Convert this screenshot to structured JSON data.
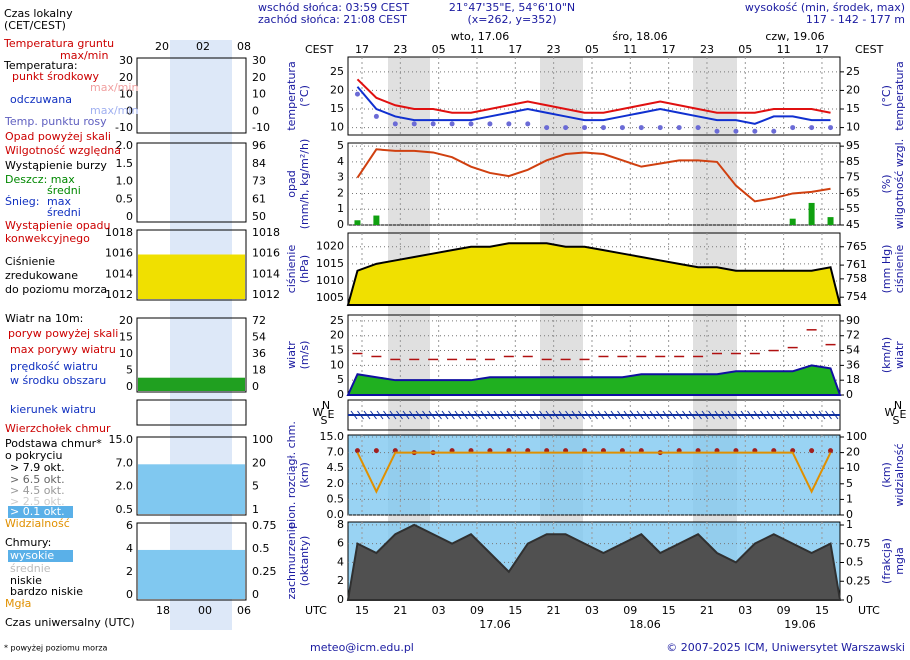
{
  "header": {
    "sunrise": "wschód słońca: 03:59 CEST",
    "sunset": "zachód słońca: 21:08 CEST",
    "coords": "21°47'35\"E, 54°6'10\"N",
    "grid": "(x=262, y=352)",
    "elevation_label": "wysokość (min, środek, max)",
    "elevation": "117 - 142 - 177 m"
  },
  "time_axis": {
    "tz_top": "CEST",
    "tz_top_right": "CEST",
    "top_hours": [
      "17",
      "23",
      "05",
      "11",
      "17",
      "23",
      "05",
      "11",
      "17",
      "23",
      "05",
      "11",
      "17"
    ],
    "dates_top": [
      "wto, 17.06",
      "śro, 18.06",
      "czw, 19.06"
    ],
    "tz_bottom": "UTC",
    "tz_bottom_right": "UTC",
    "bottom_hours": [
      "15",
      "21",
      "03",
      "09",
      "15",
      "21",
      "03",
      "09",
      "15",
      "21",
      "03",
      "09",
      "15"
    ],
    "dates_bottom": [
      "17.06",
      "18.06",
      "19.06"
    ]
  },
  "chart_data": [
    {
      "type": "line",
      "left_label": [
        "temperatura",
        "(°C)"
      ],
      "right_label": [
        "(°C)",
        "temperatura"
      ],
      "background": "#ffffff",
      "ylim": [
        8,
        29
      ],
      "yticks": [
        10,
        15,
        20,
        25
      ],
      "y2lim": [
        8,
        29
      ],
      "y2ticks": [
        10,
        15,
        20,
        25
      ],
      "series": [
        {
          "style": "dots",
          "color": "#6b6bd6",
          "values": [
            19,
            13,
            11,
            11,
            11,
            11,
            11,
            11,
            11,
            11,
            10,
            10,
            10,
            10,
            10,
            10,
            10,
            10,
            10,
            9,
            9,
            9,
            9,
            10,
            10,
            10
          ]
        },
        {
          "style": "line",
          "color": "#1030d0",
          "values": [
            21,
            15,
            13,
            12,
            12,
            12,
            12,
            13,
            14,
            15,
            14,
            13,
            12,
            12,
            13,
            14,
            15,
            14,
            13,
            12,
            12,
            11,
            13,
            13,
            12,
            12
          ]
        },
        {
          "style": "line",
          "color": "#e01010",
          "values": [
            23,
            18,
            16,
            15,
            15,
            14,
            14,
            15,
            16,
            17,
            16,
            15,
            14,
            14,
            15,
            16,
            17,
            16,
            15,
            14,
            14,
            14,
            15,
            15,
            15,
            14
          ]
        }
      ]
    },
    {
      "type": "line",
      "left_label": [
        "opad",
        "(mm/h, kg/m²/h)"
      ],
      "right_label": [
        "(%)",
        "wilgotność wzgl."
      ],
      "background": "#ffffff",
      "ylim": [
        0,
        5.2
      ],
      "yticks": [
        0,
        1,
        2,
        3,
        4,
        5
      ],
      "y2lim": [
        45,
        97
      ],
      "y2ticks": [
        45,
        55,
        65,
        75,
        85,
        95
      ],
      "series": [
        {
          "style": "bars",
          "color": "#10a010",
          "values": [
            0.3,
            0.6,
            0,
            0,
            0,
            0,
            0,
            0,
            0,
            0,
            0,
            0,
            0,
            0,
            0,
            0,
            0,
            0,
            0,
            0,
            0,
            0,
            0,
            0.4,
            1.4,
            0.5
          ]
        },
        {
          "style": "line",
          "axis": "y2",
          "color": "#d04010",
          "values": [
            75,
            93,
            92,
            92,
            91,
            88,
            82,
            78,
            76,
            80,
            86,
            90,
            91,
            90,
            86,
            82,
            84,
            86,
            86,
            85,
            70,
            60,
            62,
            65,
            66,
            68
          ]
        }
      ]
    },
    {
      "type": "area",
      "left_label": [
        "ciśnienie",
        "(hPa)"
      ],
      "right_label": [
        "(mm Hg)",
        "ciśnienie"
      ],
      "background": "#ffffff",
      "fill": "#f0e000",
      "ylim": [
        1003,
        1024
      ],
      "yticks": [
        1005,
        1010,
        1015,
        1020
      ],
      "y2lim": [
        752.3,
        768
      ],
      "y2ticks": [
        754,
        758,
        761,
        765
      ],
      "series": [
        {
          "style": "area",
          "color": "#000000",
          "values": [
            1013,
            1015,
            1016,
            1017,
            1018,
            1019,
            1020,
            1020,
            1021,
            1021,
            1021,
            1020,
            1020,
            1019,
            1018,
            1017,
            1016,
            1015,
            1014,
            1014,
            1013,
            1013,
            1013,
            1013,
            1013,
            1014
          ]
        }
      ]
    },
    {
      "type": "area",
      "left_label": [
        "wiatr",
        "(m/s)"
      ],
      "right_label": [
        "(km/h)",
        "wiatr"
      ],
      "background": "#ffffff",
      "fill": "#20b020",
      "ylim": [
        0,
        27
      ],
      "yticks": [
        0,
        5,
        10,
        15,
        20,
        25
      ],
      "y2lim": [
        0,
        97.2
      ],
      "y2ticks": [
        0,
        18,
        36,
        54,
        72,
        90
      ],
      "series": [
        {
          "style": "area",
          "color": "#1010a0",
          "values": [
            7,
            6,
            5,
            5,
            5,
            5,
            5,
            6,
            6,
            6,
            6,
            6,
            6,
            6,
            6,
            7,
            7,
            7,
            7,
            7,
            8,
            8,
            8,
            8,
            10,
            9
          ]
        },
        {
          "style": "dashes",
          "color": "#b01010",
          "values": [
            14,
            13,
            12,
            12,
            12,
            12,
            12,
            12,
            13,
            13,
            12,
            12,
            12,
            13,
            13,
            13,
            13,
            13,
            13,
            14,
            14,
            14,
            15,
            16,
            22,
            17
          ]
        }
      ]
    },
    {
      "type": "arrows",
      "compass": [
        "N",
        "W",
        "S",
        "E"
      ]
    },
    {
      "type": "line",
      "left_label": [
        "pion. rozciągł. chm.",
        "(km)"
      ],
      "right_label": [
        "(km)",
        "widzialność"
      ],
      "background": "#80c8f0",
      "scale": "ticks",
      "yticks": [
        {
          "value": 0,
          "label": "0.0"
        },
        0.5,
        {
          "value": 2,
          "label": "2.0"
        },
        4.5,
        {
          "value": 7,
          "label": "7.0"
        },
        {
          "value": 15,
          "label": "15.0"
        }
      ],
      "y2ticks": [
        0,
        1,
        5,
        10,
        20,
        100
      ],
      "series": [
        {
          "style": "dots",
          "color": "#a02020",
          "values": [
            8,
            8,
            8,
            7,
            7,
            8,
            8,
            8,
            8,
            8,
            8,
            8,
            8,
            8,
            8,
            8,
            7,
            8,
            8,
            8,
            8,
            8,
            8,
            8,
            8,
            8
          ]
        },
        {
          "style": "line",
          "axis": "y2",
          "color": "#e09000",
          "values": [
            20,
            3,
            20,
            20,
            20,
            20,
            20,
            20,
            20,
            20,
            20,
            20,
            20,
            20,
            20,
            20,
            20,
            20,
            20,
            20,
            20,
            20,
            20,
            20,
            3,
            20
          ]
        }
      ]
    },
    {
      "type": "area",
      "left_label": [
        "zachmurzenie",
        "(oktanty)"
      ],
      "right_label": [
        "(frakcja)",
        "mgła"
      ],
      "background": "#80c8f0",
      "fill": "#505050",
      "ylim": [
        0,
        8.3
      ],
      "yticks": [
        0,
        2,
        4,
        6,
        8
      ],
      "y2lim": [
        0,
        1.04
      ],
      "y2ticks": [
        0,
        0.25,
        0.5,
        0.75,
        1
      ],
      "series": [
        {
          "style": "area",
          "color": "#303030",
          "values": [
            6,
            5,
            7,
            8,
            7,
            6,
            7,
            5,
            3,
            6,
            7,
            7,
            6,
            5,
            6,
            7,
            5,
            6,
            7,
            5,
            4,
            6,
            7,
            6,
            5,
            6
          ]
        }
      ]
    }
  ],
  "thumbnail": {
    "top_hours": [
      "20",
      "02",
      "08"
    ],
    "bottom_hours": [
      "18",
      "00",
      "06"
    ],
    "panels": [
      {
        "yticks": [
          "30",
          "20",
          "10",
          "0",
          "-10"
        ],
        "y2ticks": [
          "30",
          "20",
          "10",
          "0",
          "-10"
        ]
      },
      {
        "yticks": [
          "2.0",
          "1.5",
          "1.0",
          "0.5",
          "0"
        ],
        "y2ticks": [
          "96",
          "84",
          "73",
          "61",
          "50"
        ]
      },
      {
        "yticks": [
          "1018",
          "1016",
          "1014",
          "1012"
        ],
        "y2ticks": [
          "1018",
          "1016",
          "1014",
          "1012"
        ]
      },
      {
        "yticks": [
          "20",
          "15",
          "10",
          "5",
          "0"
        ],
        "y2ticks": [
          "72",
          "54",
          "36",
          "18",
          "0"
        ]
      },
      {
        "yticks": [],
        "y2ticks": []
      },
      {
        "yticks": [
          "15.0",
          "7.0",
          "2.0",
          "0.5"
        ],
        "y2ticks": [
          "100",
          "20",
          "5",
          "1"
        ]
      },
      {
        "yticks": [
          "6",
          "4",
          "2",
          "0"
        ],
        "y2ticks": [
          "0.75",
          "0.5",
          "0.25",
          "0"
        ]
      }
    ]
  },
  "legend": [
    {
      "text": "Czas lokalny",
      "color": "#000"
    },
    {
      "text": "(CET/CEST)",
      "color": "#000"
    },
    {
      "text": "Temperatura gruntu",
      "color": "#c00"
    },
    {
      "text": "max/min",
      "color": "#c00"
    },
    {
      "text": "Temperatura:",
      "color": "#000"
    },
    {
      "text": "punkt środkowy",
      "color": "#c00"
    },
    {
      "text": "max/min",
      "color": "#f0a0a0"
    },
    {
      "text": "odczuwana",
      "color": "#1030c0"
    },
    {
      "text": "max/min",
      "color": "#a0b0f0"
    },
    {
      "text": "Temp. punktu rosy",
      "color": "#6060c0"
    },
    {
      "text": "Opad powyżej skali",
      "color": "#c00"
    },
    {
      "text": "Wilgotność względna",
      "color": "#c00"
    },
    {
      "text": "Wystąpienie burzy",
      "color": "#000"
    },
    {
      "text": "Deszcz: max",
      "color": "#080"
    },
    {
      "text": "średni",
      "color": "#080"
    },
    {
      "text": "Śnieg:",
      "color": "#1030c0"
    },
    {
      "text": "max",
      "color": "#1030c0"
    },
    {
      "text": "średni",
      "color": "#1030c0"
    },
    {
      "text": "Wystąpienie opadu",
      "color": "#c00"
    },
    {
      "text": "konwekcyjnego",
      "color": "#c00"
    },
    {
      "text": "Ciśnienie",
      "color": "#000"
    },
    {
      "text": "zredukowane",
      "color": "#000"
    },
    {
      "text": "do poziomu morza",
      "color": "#000"
    },
    {
      "text": "Wiatr na 10m:",
      "color": "#000"
    },
    {
      "text": "poryw powyżej skali",
      "color": "#c00"
    },
    {
      "text": "max porywy wiatru",
      "color": "#c00"
    },
    {
      "text": "prędkość wiatru",
      "color": "#1030c0"
    },
    {
      "text": "w środku obszaru",
      "color": "#1030c0"
    },
    {
      "text": "kierunek wiatru",
      "color": "#1030c0"
    },
    {
      "text": "Wierzchołek chmur",
      "color": "#c00"
    },
    {
      "text": "Podstawa chmur*",
      "color": "#000"
    },
    {
      "text": "o pokryciu",
      "color": "#000"
    },
    {
      "text": "> 7.9 okt.",
      "color": "#000"
    },
    {
      "text": "> 6.5 okt.",
      "color": "#666"
    },
    {
      "text": "> 4.5 okt.",
      "color": "#999"
    },
    {
      "text": "> 2.5 okt.",
      "color": "#ccc"
    },
    {
      "text": "> 0.1 okt.",
      "color": "#fff"
    },
    {
      "text": "Widzialność",
      "color": "#e09000"
    },
    {
      "text": "Chmury:",
      "color": "#000"
    },
    {
      "text": "wysokie",
      "color": "#fff"
    },
    {
      "text": "średnie",
      "color": "#bbb"
    },
    {
      "text": "niskie",
      "color": "#000"
    },
    {
      "text": "bardzo niskie",
      "color": "#000"
    },
    {
      "text": "Mgła",
      "color": "#e09000"
    },
    {
      "text": "Czas uniwersalny (UTC)",
      "color": "#000"
    }
  ],
  "footer": {
    "note": "* powyżej poziomu morza",
    "email": "meteo@icm.edu.pl",
    "copyright": "© 2007-2025 ICM, Uniwersytet Warszawski"
  }
}
